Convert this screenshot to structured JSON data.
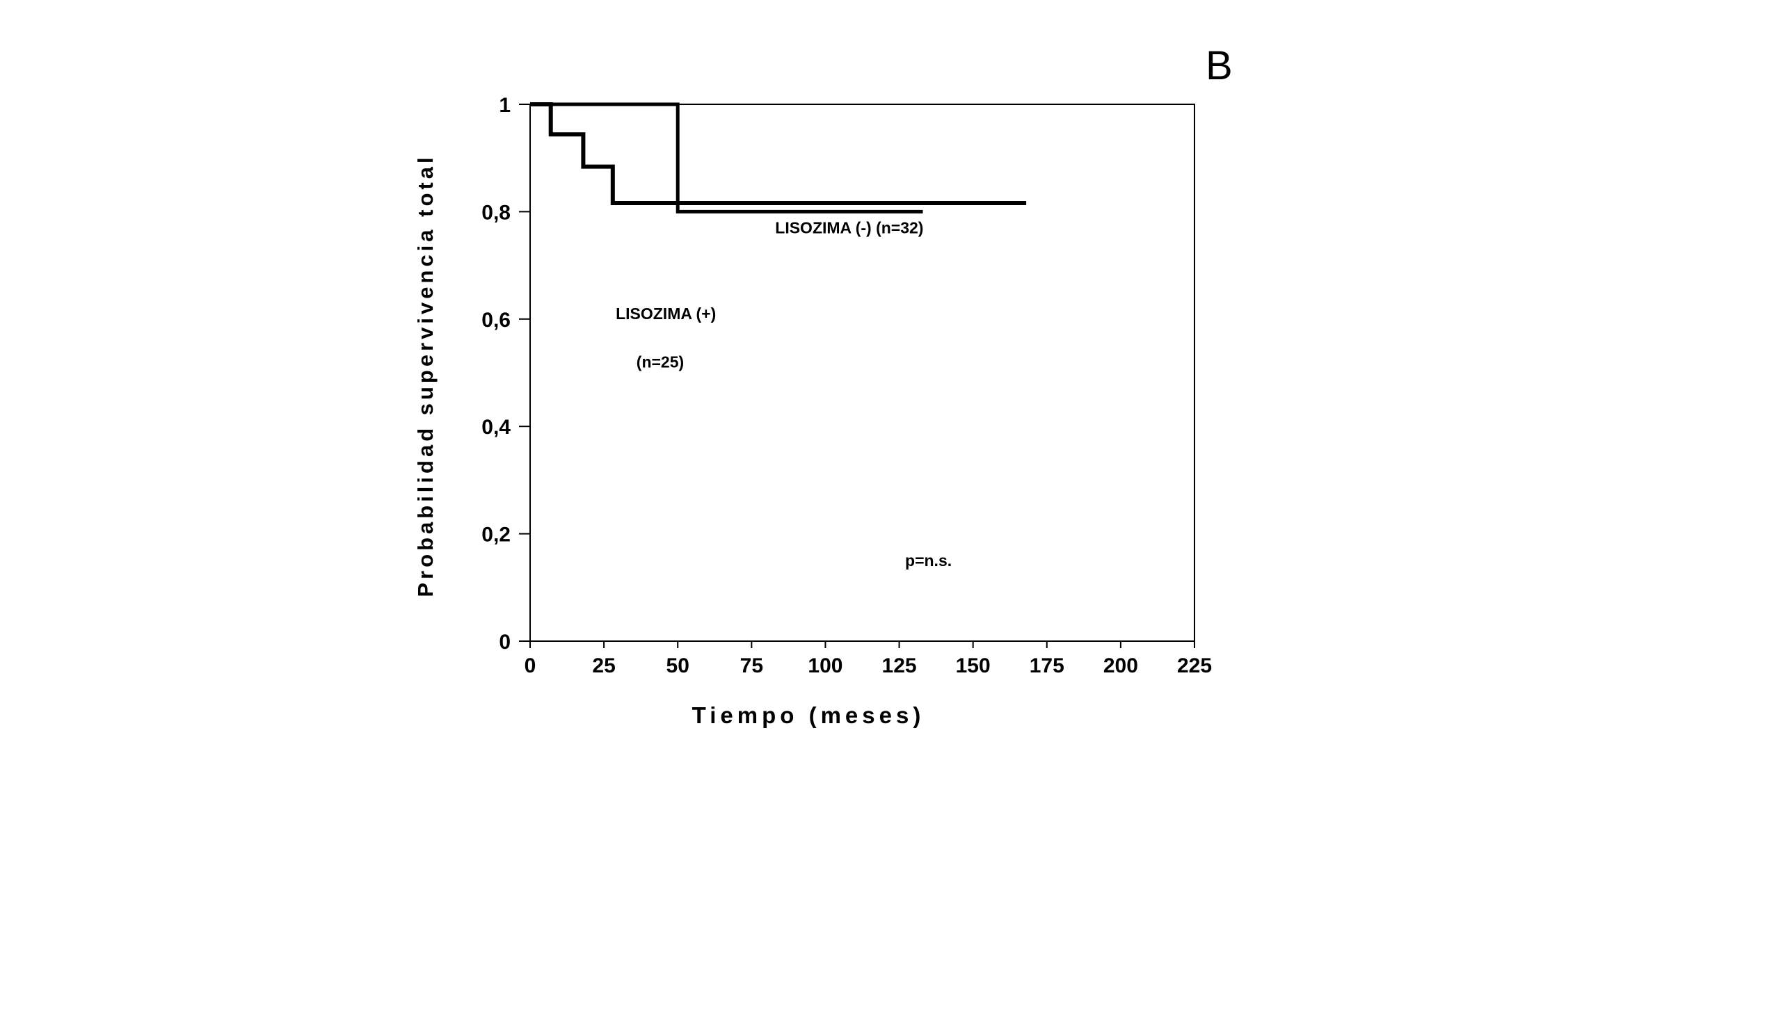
{
  "chart_data": {
    "type": "line",
    "panel_label": "B",
    "xlabel": "Tiempo (meses)",
    "ylabel": "Probabilidad supervivencia total",
    "xlim": [
      0,
      225
    ],
    "ylim": [
      0,
      1
    ],
    "x_ticks": [
      "0",
      "25",
      "50",
      "75",
      "100",
      "125",
      "150",
      "175",
      "200",
      "225"
    ],
    "y_ticks": [
      "0",
      "0,2",
      "0,4",
      "0,6",
      "0,8",
      "1"
    ],
    "grid": false,
    "series": [
      {
        "name": "LISOZIMA (-) (n=32)",
        "style": "step",
        "points": [
          [
            0,
            1.0
          ],
          [
            50,
            1.0
          ],
          [
            50,
            0.8
          ],
          [
            133,
            0.8
          ]
        ]
      },
      {
        "name": "LISOZIMA (+) (n=25)",
        "style": "step",
        "points": [
          [
            0,
            1.0
          ],
          [
            7,
            1.0
          ],
          [
            7,
            0.944
          ],
          [
            18,
            0.944
          ],
          [
            18,
            0.884
          ],
          [
            28,
            0.884
          ],
          [
            28,
            0.816
          ],
          [
            168,
            0.816
          ]
        ]
      }
    ],
    "annotations": [
      {
        "id": "neg",
        "text": "LISOZIMA (-)  (n=32)",
        "x": 83,
        "y": 0.76
      },
      {
        "id": "pos1",
        "text": "LISOZIMA (+)",
        "x": 29,
        "y": 0.6
      },
      {
        "id": "pos2",
        "text": "(n=25)",
        "x": 36,
        "y": 0.51
      },
      {
        "id": "p",
        "text": "p=n.s.",
        "x": 127,
        "y": 0.14
      }
    ]
  }
}
